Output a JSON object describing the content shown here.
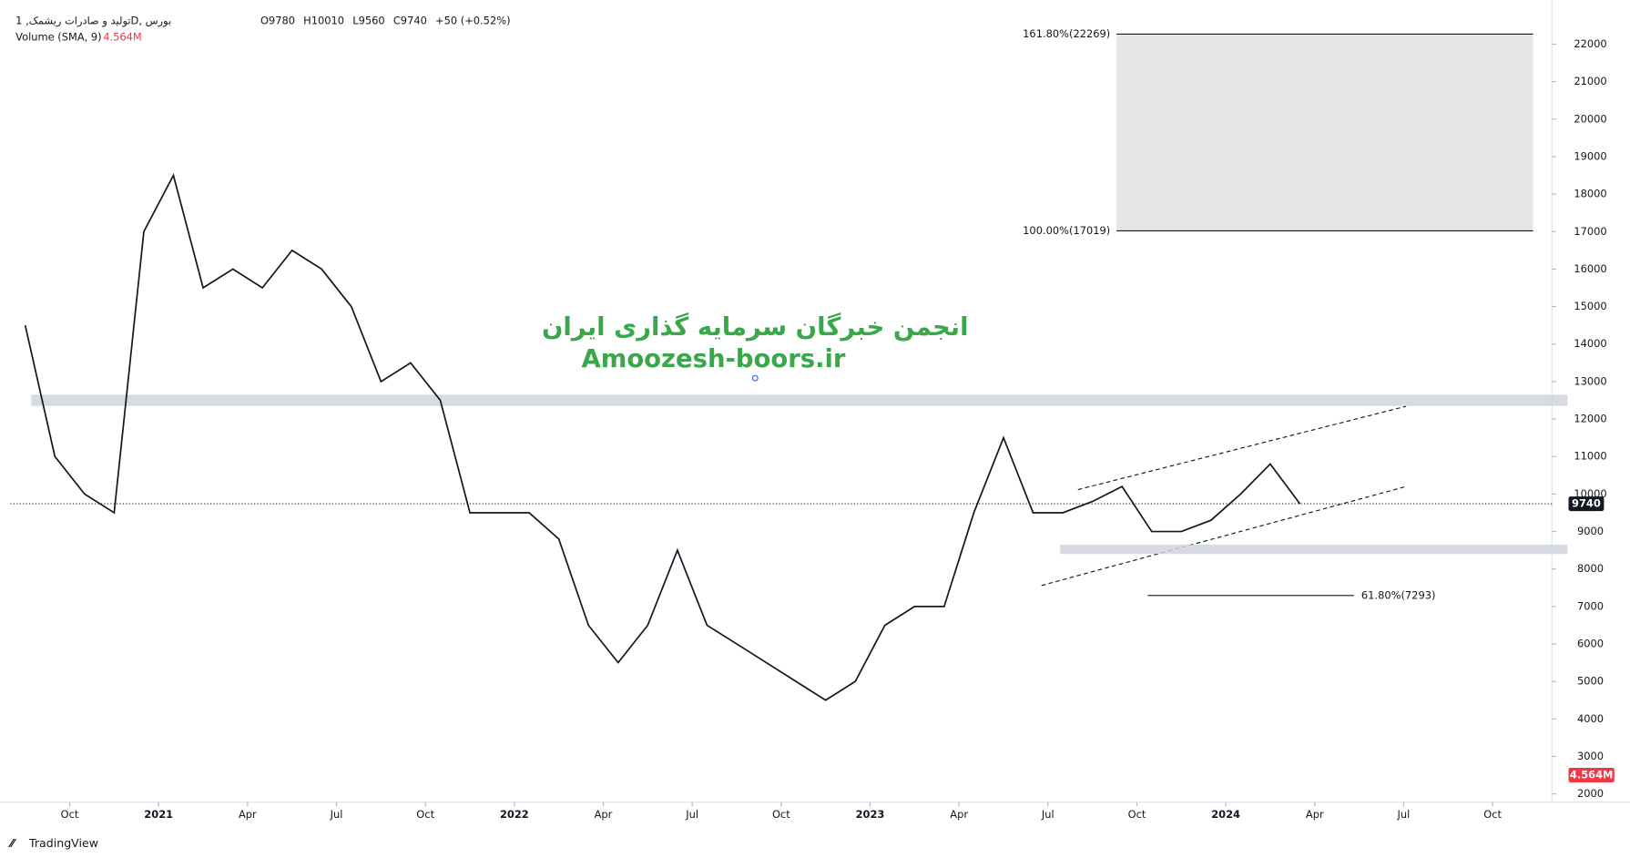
{
  "chart_data": {
    "type": "line",
    "title": "تولید و صادرات ریشمک, 1D, بورس",
    "ohlc": [
      "O9780",
      "H10010",
      "L9560",
      "C9740",
      "+50 (+0.52%)"
    ],
    "volume_label": "Volume (SMA, 9)",
    "volume_value": "4.564M",
    "watermark": [
      "انجمن خبرگان سرمایه گذاری ایران",
      "Amoozesh-boors.ir"
    ],
    "brand": "TradingView",
    "x": [
      "2020-08",
      "2020-09",
      "2020-10",
      "2020-11",
      "2020-12",
      "2021-01",
      "2021-02",
      "2021-03",
      "2021-04",
      "2021-05",
      "2021-06",
      "2021-07",
      "2021-08",
      "2021-09",
      "2021-10",
      "2021-11",
      "2021-12",
      "2022-01",
      "2022-02",
      "2022-03",
      "2022-04",
      "2022-05",
      "2022-06",
      "2022-07",
      "2022-08",
      "2022-09",
      "2022-10",
      "2022-11",
      "2022-12",
      "2023-01",
      "2023-02",
      "2023-03",
      "2023-04",
      "2023-05",
      "2023-06",
      "2023-07",
      "2023-08",
      "2023-09",
      "2023-10",
      "2023-11",
      "2023-12",
      "2024-01",
      "2024-02",
      "2024-03"
    ],
    "series": [
      {
        "name": "Close",
        "color": "#131722",
        "values": [
          14500,
          11000,
          10000,
          9500,
          17000,
          18500,
          15500,
          16000,
          15500,
          16500,
          16000,
          15000,
          13000,
          13500,
          12500,
          9500,
          9500,
          9500,
          8800,
          6500,
          5500,
          6500,
          8500,
          6500,
          6000,
          5500,
          5000,
          4500,
          5000,
          6500,
          7000,
          7000,
          9500,
          11500,
          9500,
          9500,
          9800,
          10200,
          9000,
          9000,
          9300,
          10000,
          10800,
          9740
        ]
      }
    ],
    "last_price": {
      "value": 9740,
      "label": "9740"
    },
    "zones": [
      {
        "low": 12350,
        "high": 12650
      },
      {
        "low": 8400,
        "high": 8650
      }
    ],
    "fib_levels": [
      {
        "label": "161.80%(22269)",
        "value": 22269
      },
      {
        "label": "100.00%(17019)",
        "value": 17019
      },
      {
        "label": "61.80%(7293)",
        "value": 7293
      }
    ],
    "xlim": [
      "2020-08",
      "2024-12"
    ],
    "xticks": [
      {
        "value": "2020-10",
        "label": "Oct"
      },
      {
        "value": "2021-01",
        "label": "2021"
      },
      {
        "value": "2021-04",
        "label": "Apr"
      },
      {
        "value": "2021-07",
        "label": "Jul"
      },
      {
        "value": "2021-10",
        "label": "Oct"
      },
      {
        "value": "2022-01",
        "label": "2022"
      },
      {
        "value": "2022-04",
        "label": "Apr"
      },
      {
        "value": "2022-07",
        "label": "Jul"
      },
      {
        "value": "2022-10",
        "label": "Oct"
      },
      {
        "value": "2023-01",
        "label": "2023"
      },
      {
        "value": "2023-04",
        "label": "Apr"
      },
      {
        "value": "2023-07",
        "label": "Jul"
      },
      {
        "value": "2023-10",
        "label": "Oct"
      },
      {
        "value": "2024-01",
        "label": "2024"
      },
      {
        "value": "2024-04",
        "label": "Apr"
      },
      {
        "value": "2024-07",
        "label": "Jul"
      },
      {
        "value": "2024-10",
        "label": "Oct"
      }
    ],
    "ylim": [
      1780,
      22900
    ],
    "yticks": [
      2000,
      3000,
      4000,
      5000,
      6000,
      7000,
      8000,
      9000,
      10000,
      11000,
      12000,
      13000,
      14000,
      15000,
      16000,
      17000,
      18000,
      19000,
      20000,
      21000,
      22000
    ]
  }
}
